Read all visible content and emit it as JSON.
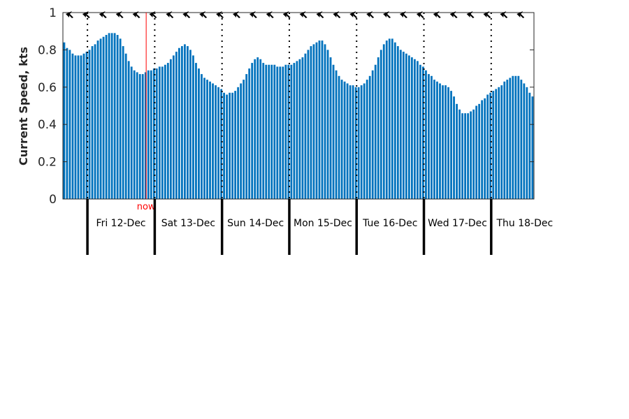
{
  "chart_data": {
    "type": "bar",
    "title": "",
    "xlabel": "",
    "ylabel": "Current Speed, kts",
    "ylim": [
      0,
      1
    ],
    "yticks": [
      "0",
      "0.2",
      "0.4",
      "0.6",
      "0.8",
      "1"
    ],
    "ytick_values": [
      0,
      0.2,
      0.4,
      0.6,
      0.8,
      1
    ],
    "x_unit": "hours from plot start",
    "xlim": [
      0,
      168
    ],
    "bar_color": "#0072bd",
    "now": {
      "label": "now",
      "x": 29.7,
      "color": "#ff0000"
    },
    "days": [
      {
        "label": "Fri 12-Dec",
        "start": 8.75
      },
      {
        "label": "Sat 13-Dec",
        "start": 32.75
      },
      {
        "label": "Sun 14-Dec",
        "start": 56.75
      },
      {
        "label": "Mon 15-Dec",
        "start": 80.75
      },
      {
        "label": "Tue 16-Dec",
        "start": 104.75
      },
      {
        "label": "Wed 17-Dec",
        "start": 128.75
      },
      {
        "label": "Thu 18-Dec",
        "start": 152.75
      }
    ],
    "values": [
      0.84,
      0.81,
      0.8,
      0.78,
      0.77,
      0.77,
      0.77,
      0.78,
      0.79,
      0.8,
      0.82,
      0.83,
      0.85,
      0.86,
      0.87,
      0.88,
      0.89,
      0.89,
      0.89,
      0.88,
      0.86,
      0.82,
      0.78,
      0.74,
      0.71,
      0.69,
      0.68,
      0.67,
      0.67,
      0.68,
      0.69,
      0.69,
      0.7,
      0.7,
      0.71,
      0.71,
      0.72,
      0.73,
      0.75,
      0.77,
      0.79,
      0.81,
      0.82,
      0.83,
      0.82,
      0.8,
      0.77,
      0.73,
      0.7,
      0.67,
      0.65,
      0.64,
      0.63,
      0.62,
      0.61,
      0.6,
      0.59,
      0.57,
      0.56,
      0.57,
      0.57,
      0.58,
      0.6,
      0.62,
      0.64,
      0.67,
      0.7,
      0.73,
      0.75,
      0.76,
      0.75,
      0.73,
      0.72,
      0.72,
      0.72,
      0.72,
      0.71,
      0.71,
      0.71,
      0.72,
      0.72,
      0.72,
      0.73,
      0.74,
      0.75,
      0.76,
      0.78,
      0.8,
      0.82,
      0.83,
      0.84,
      0.85,
      0.85,
      0.83,
      0.8,
      0.76,
      0.72,
      0.69,
      0.66,
      0.64,
      0.63,
      0.62,
      0.61,
      0.61,
      0.6,
      0.6,
      0.61,
      0.62,
      0.64,
      0.66,
      0.69,
      0.72,
      0.76,
      0.8,
      0.83,
      0.85,
      0.86,
      0.86,
      0.84,
      0.82,
      0.8,
      0.79,
      0.78,
      0.77,
      0.76,
      0.75,
      0.74,
      0.72,
      0.71,
      0.69,
      0.67,
      0.66,
      0.64,
      0.63,
      0.62,
      0.61,
      0.61,
      0.6,
      0.58,
      0.55,
      0.51,
      0.48,
      0.46,
      0.46,
      0.46,
      0.47,
      0.48,
      0.5,
      0.51,
      0.53,
      0.54,
      0.56,
      0.57,
      0.58,
      0.59,
      0.6,
      0.61,
      0.63,
      0.64,
      0.65,
      0.66,
      0.66,
      0.66,
      0.64,
      0.62,
      0.6,
      0.57,
      0.55
    ],
    "direction_arrows": {
      "count": 28,
      "interval_hours": 6,
      "direction": "west (pointing left)"
    }
  }
}
